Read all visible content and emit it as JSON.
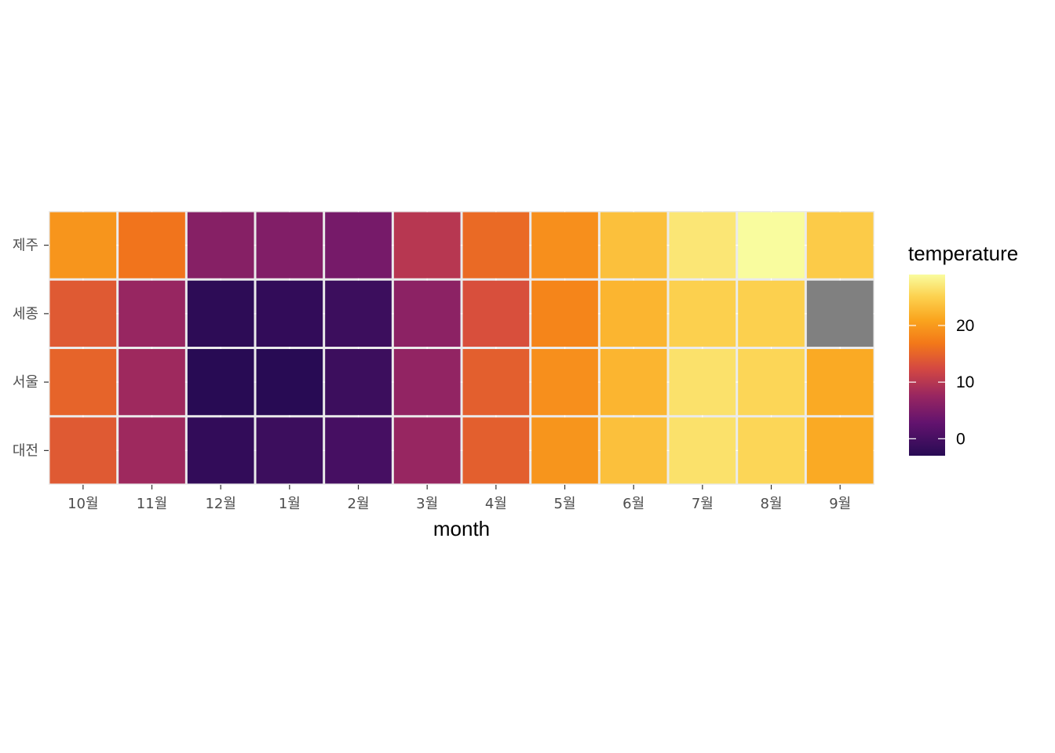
{
  "chart_data": {
    "type": "heatmap",
    "title": "",
    "xlabel": "month",
    "ylabel": "",
    "x_categories": [
      "10월",
      "11월",
      "12월",
      "1월",
      "2월",
      "3월",
      "4월",
      "5월",
      "6월",
      "7월",
      "8월",
      "9월"
    ],
    "y_categories": [
      "제주",
      "세종",
      "서울",
      "대전"
    ],
    "values": [
      [
        19.5,
        16.5,
        6.0,
        5.5,
        4.5,
        10.0,
        15.5,
        19.0,
        23.5,
        27.0,
        29.0,
        24.5
      ],
      [
        14.0,
        7.5,
        -2.5,
        -2.0,
        -1.0,
        6.5,
        13.0,
        18.0,
        22.5,
        25.0,
        25.0,
        null
      ],
      [
        15.0,
        8.0,
        -3.0,
        -3.0,
        -1.0,
        7.0,
        14.5,
        19.0,
        22.5,
        26.5,
        25.5,
        21.5
      ],
      [
        14.0,
        8.0,
        -2.0,
        -1.0,
        0.0,
        7.5,
        14.5,
        19.5,
        23.5,
        26.5,
        25.5,
        21.5
      ]
    ],
    "legend": {
      "title": "temperature",
      "ticks": [
        0,
        10,
        20
      ],
      "range": [
        -3,
        29
      ],
      "position": "right"
    },
    "na_color": "#808080",
    "grid": true,
    "colorscale": "inferno"
  }
}
